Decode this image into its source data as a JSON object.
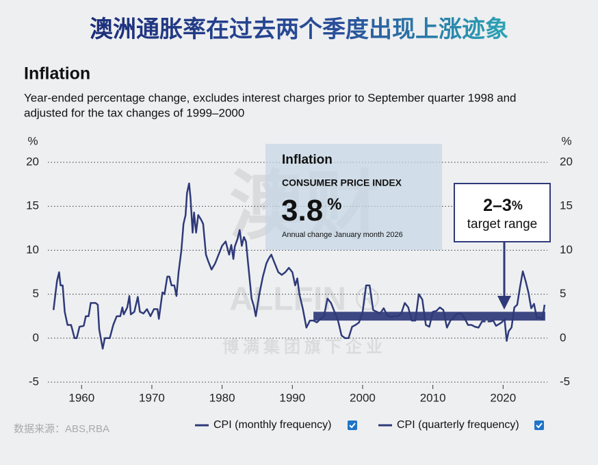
{
  "banner_title": "澳洲通胀率在过去两个季度出现上涨迹象",
  "chart_data": {
    "type": "line",
    "title": "Inflation",
    "subtitle_lines": [
      "Year-ended percentage change, excludes interest charges prior to September quarter 1998 and",
      "adjusted for the tax changes of 1999–2000"
    ],
    "y_unit": "%",
    "xlim": [
      1955.2,
      2026.3
    ],
    "xticks": [
      1960,
      1970,
      1980,
      1990,
      2000,
      2010,
      2020
    ],
    "ylim": [
      -5,
      20
    ],
    "yticks": [
      -5,
      0,
      5,
      10,
      15,
      20
    ],
    "grid": true,
    "series": [
      {
        "name": "CPI (monthly frequency)",
        "color": "#2e3a78",
        "x": [
          2017.8,
          2018.2,
          2018.6,
          2019.0,
          2019.4,
          2019.8,
          2020.2,
          2020.5,
          2020.8,
          2021.2,
          2021.6,
          2022.0,
          2022.4,
          2022.8,
          2023.2,
          2023.6,
          2024.0,
          2024.4,
          2024.8,
          2025.2,
          2025.6,
          2025.9
        ],
        "values": [
          1.9,
          1.9,
          2.0,
          1.4,
          1.6,
          1.8,
          2.2,
          -0.3,
          0.8,
          1.2,
          3.5,
          3.8,
          5.8,
          7.6,
          6.5,
          5.2,
          3.4,
          3.9,
          2.3,
          2.4,
          2.1,
          3.8
        ]
      },
      {
        "name": "CPI (quarterly frequency)",
        "color": "#2e3a78",
        "x": [
          1956.0,
          1956.5,
          1956.8,
          1957.0,
          1957.3,
          1957.6,
          1958.0,
          1958.5,
          1959.0,
          1959.3,
          1959.7,
          1960.3,
          1960.6,
          1961.0,
          1961.3,
          1962.0,
          1962.3,
          1962.5,
          1963.0,
          1963.3,
          1964.0,
          1964.5,
          1965.0,
          1965.5,
          1965.8,
          1966.0,
          1966.5,
          1966.8,
          1967.0,
          1967.5,
          1968.0,
          1968.3,
          1968.8,
          1969.3,
          1969.8,
          1970.3,
          1970.8,
          1971.0,
          1971.5,
          1971.8,
          1972.2,
          1972.5,
          1972.8,
          1973.2,
          1973.5,
          1973.8,
          1974.2,
          1974.5,
          1974.8,
          1975.0,
          1975.3,
          1975.5,
          1975.8,
          1976.0,
          1976.3,
          1976.6,
          1977.0,
          1977.3,
          1977.7,
          1978.0,
          1978.5,
          1979.0,
          1979.5,
          1980.0,
          1980.5,
          1981.0,
          1981.3,
          1981.6,
          1981.8,
          1982.2,
          1982.5,
          1982.8,
          1983.1,
          1983.4,
          1983.7,
          1984.2,
          1984.5,
          1984.8,
          1985.3,
          1985.8,
          1986.3,
          1986.6,
          1987.0,
          1987.5,
          1988.0,
          1988.5,
          1989.0,
          1989.5,
          1990.0,
          1990.4,
          1990.7,
          1991.0,
          1991.5,
          1992.0,
          1992.5,
          1993.0,
          1993.5,
          1994.0,
          1994.5,
          1995.0,
          1995.5,
          1996.0,
          1996.5,
          1997.0,
          1997.5,
          1998.0,
          1998.5,
          1999.0,
          1999.5,
          2000.0,
          2000.5,
          2001.0,
          2001.5,
          2002.0,
          2002.5,
          2003.0,
          2003.5,
          2004.0,
          2004.5,
          2005.0,
          2005.5,
          2006.0,
          2006.5,
          2007.0,
          2007.5,
          2008.0,
          2008.5,
          2009.0,
          2009.5,
          2010.0,
          2010.5,
          2011.0,
          2011.5,
          2012.0,
          2012.5,
          2013.0,
          2013.5,
          2014.0,
          2014.5,
          2015.0,
          2015.5,
          2016.0,
          2016.5,
          2017.0,
          2017.5
        ],
        "values": [
          3.2,
          6.5,
          7.5,
          6.0,
          6.0,
          3.0,
          1.5,
          1.5,
          0.0,
          0.0,
          1.3,
          1.4,
          2.5,
          2.5,
          4.0,
          4.0,
          3.8,
          1.0,
          -1.2,
          0.0,
          0.0,
          1.5,
          2.5,
          2.5,
          3.5,
          2.7,
          3.5,
          4.8,
          2.7,
          3.0,
          4.7,
          3.0,
          2.8,
          3.3,
          2.5,
          3.3,
          3.3,
          2.2,
          5.2,
          5.0,
          7.0,
          7.0,
          6.0,
          6.0,
          4.8,
          7.5,
          10.0,
          13.0,
          14.0,
          16.5,
          17.6,
          16.0,
          12.0,
          14.3,
          12.0,
          14.0,
          13.5,
          13.0,
          9.5,
          8.8,
          7.8,
          8.5,
          9.5,
          10.5,
          11.0,
          9.5,
          10.6,
          9.0,
          10.4,
          11.3,
          12.3,
          10.5,
          11.5,
          11.0,
          8.5,
          4.5,
          3.7,
          2.5,
          5.0,
          7.0,
          8.5,
          9.0,
          9.5,
          8.5,
          7.5,
          7.2,
          7.5,
          8.0,
          7.5,
          6.0,
          6.8,
          5.0,
          3.3,
          1.2,
          2.0,
          2.0,
          1.8,
          2.2,
          2.5,
          4.5,
          4.0,
          3.0,
          2.0,
          0.3,
          0.0,
          0.0,
          1.3,
          1.5,
          1.8,
          3.0,
          6.0,
          6.0,
          3.2,
          3.0,
          2.8,
          3.4,
          2.6,
          2.4,
          2.5,
          2.5,
          2.8,
          4.0,
          3.5,
          2.0,
          2.0,
          5.0,
          4.4,
          1.5,
          1.3,
          3.0,
          3.1,
          3.5,
          3.2,
          1.2,
          2.0,
          2.4,
          2.8,
          2.8,
          2.3,
          1.5,
          1.5,
          1.3,
          1.2,
          1.9,
          1.9
        ]
      }
    ],
    "target_band": {
      "xstart": 1993,
      "xend": 2026,
      "ylow": 2,
      "yhigh": 3
    },
    "callout": {
      "headline": "2–3",
      "unit": "%",
      "text": "target range"
    },
    "inset": {
      "title": "Inflation",
      "label": "CONSUMER PRICE INDEX",
      "headline": "3.8",
      "unit": "%",
      "note": "Annual change January month 2026"
    },
    "watermark": [
      "澳财",
      "ALLFIN ®",
      "博满集团旗下企业"
    ],
    "source": "数据来源：ABS,RBA"
  }
}
